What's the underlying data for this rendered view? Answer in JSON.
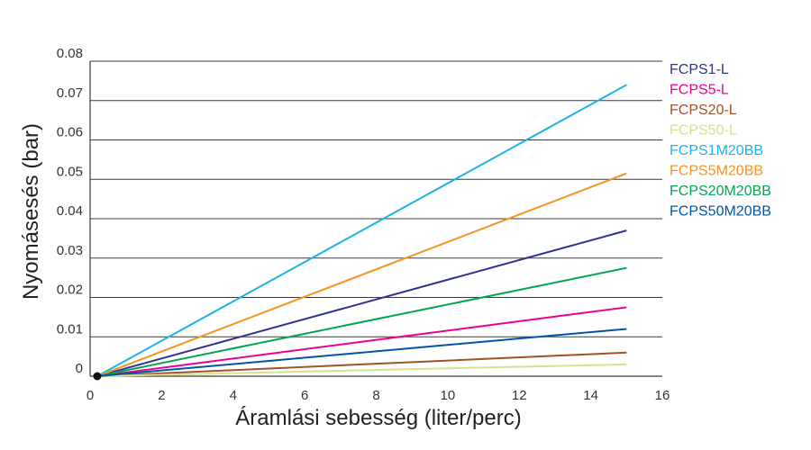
{
  "chart_data": {
    "type": "line",
    "title": "",
    "xlabel": "Áramlási sebesség (liter/perc)",
    "ylabel": "Nyomásesés (bar)",
    "xlim": [
      0,
      16
    ],
    "ylim": [
      0,
      0.08
    ],
    "x_ticks": [
      "0",
      "2",
      "4",
      "6",
      "8",
      "10",
      "12",
      "14",
      "16"
    ],
    "y_ticks": [
      "0",
      "0.01",
      "0.02",
      "0.03",
      "0.04",
      "0.05",
      "0.06",
      "0.07",
      "0.08"
    ],
    "grid": "horizontal",
    "legend_position": "right",
    "series": [
      {
        "name": "FCPS1-L",
        "color": "#2e3192",
        "x": [
          0.2,
          15
        ],
        "y": [
          0,
          0.037
        ]
      },
      {
        "name": "FCPS5-L",
        "color": "#ec008c",
        "x": [
          0.2,
          15
        ],
        "y": [
          0,
          0.0175
        ]
      },
      {
        "name": "FCPS20-L",
        "color": "#a0522d",
        "x": [
          0.2,
          15
        ],
        "y": [
          0,
          0.006
        ]
      },
      {
        "name": "FCPS50-L",
        "color": "#d7e08a",
        "x": [
          0.2,
          15
        ],
        "y": [
          0,
          0.003
        ]
      },
      {
        "name": "FCPS1M20BB",
        "color": "#1fb3e5",
        "x": [
          0.2,
          15
        ],
        "y": [
          0,
          0.074
        ]
      },
      {
        "name": "FCPS5M20BB",
        "color": "#f7931e",
        "x": [
          0.2,
          15
        ],
        "y": [
          0,
          0.0515
        ]
      },
      {
        "name": "FCPS20M20BB",
        "color": "#00a651",
        "x": [
          0.2,
          15
        ],
        "y": [
          0,
          0.0275
        ]
      },
      {
        "name": "FCPS50M20BB",
        "color": "#0054a6",
        "x": [
          0.2,
          15
        ],
        "y": [
          0,
          0.012
        ]
      }
    ],
    "origin_point": {
      "x": 0.2,
      "y": 0
    }
  }
}
